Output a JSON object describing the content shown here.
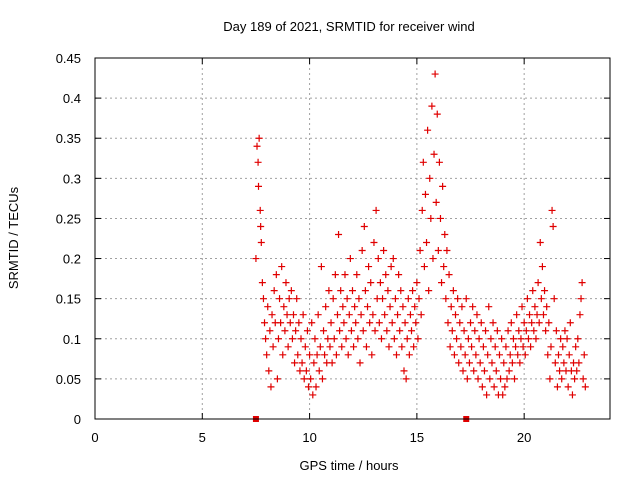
{
  "chart_data": {
    "type": "scatter",
    "title": "Day 189 of 2021, SRMTID for receiver wind",
    "xlabel": "GPS time / hours",
    "ylabel": "SRMTID / TECUs",
    "xlim": [
      0,
      24
    ],
    "ylim": [
      0,
      0.45
    ],
    "xticks": [
      0,
      5,
      10,
      15,
      20
    ],
    "yticks": [
      0,
      0.05,
      0.1,
      0.15,
      0.2,
      0.25,
      0.3,
      0.35,
      0.4,
      0.45
    ],
    "xtick_labels": [
      "0",
      "5",
      "10",
      "15",
      "20"
    ],
    "ytick_labels": [
      "0",
      "0.05",
      "0.1",
      "0.15",
      "0.2",
      "0.25",
      "0.3",
      "0.35",
      "0.4",
      "0.45"
    ],
    "grid": true,
    "marker": "+",
    "color": "#e00000",
    "series": [
      {
        "name": "SRMTID",
        "points": [
          [
            7.5,
            0.2
          ],
          [
            7.55,
            0.34
          ],
          [
            7.6,
            0.32
          ],
          [
            7.62,
            0.29
          ],
          [
            7.65,
            0.35
          ],
          [
            7.7,
            0.26
          ],
          [
            7.72,
            0.24
          ],
          [
            7.75,
            0.22
          ],
          [
            7.8,
            0.17
          ],
          [
            7.85,
            0.15
          ],
          [
            7.9,
            0.12
          ],
          [
            7.95,
            0.1
          ],
          [
            8.0,
            0.08
          ],
          [
            8.05,
            0.14
          ],
          [
            8.1,
            0.06
          ],
          [
            8.15,
            0.11
          ],
          [
            8.2,
            0.04
          ],
          [
            8.25,
            0.13
          ],
          [
            8.3,
            0.09
          ],
          [
            8.35,
            0.16
          ],
          [
            8.4,
            0.12
          ],
          [
            8.45,
            0.18
          ],
          [
            8.5,
            0.05
          ],
          [
            8.55,
            0.1
          ],
          [
            8.6,
            0.15
          ],
          [
            8.65,
            0.12
          ],
          [
            8.7,
            0.19
          ],
          [
            8.75,
            0.08
          ],
          [
            8.8,
            0.14
          ],
          [
            8.85,
            0.11
          ],
          [
            8.9,
            0.17
          ],
          [
            8.95,
            0.13
          ],
          [
            9.0,
            0.09
          ],
          [
            9.05,
            0.15
          ],
          [
            9.1,
            0.12
          ],
          [
            9.15,
            0.16
          ],
          [
            9.2,
            0.1
          ],
          [
            9.25,
            0.13
          ],
          [
            9.3,
            0.07
          ],
          [
            9.35,
            0.11
          ],
          [
            9.4,
            0.15
          ],
          [
            9.45,
            0.08
          ],
          [
            9.5,
            0.12
          ],
          [
            9.55,
            0.06
          ],
          [
            9.6,
            0.1
          ],
          [
            9.65,
            0.07
          ],
          [
            9.7,
            0.13
          ],
          [
            9.75,
            0.05
          ],
          [
            9.8,
            0.09
          ],
          [
            9.85,
            0.06
          ],
          [
            9.9,
            0.11
          ],
          [
            9.95,
            0.04
          ],
          [
            10.0,
            0.08
          ],
          [
            10.05,
            0.05
          ],
          [
            10.1,
            0.12
          ],
          [
            10.15,
            0.03
          ],
          [
            10.2,
            0.07
          ],
          [
            10.25,
            0.1
          ],
          [
            10.3,
            0.04
          ],
          [
            10.35,
            0.08
          ],
          [
            10.4,
            0.13
          ],
          [
            10.45,
            0.06
          ],
          [
            10.5,
            0.09
          ],
          [
            10.55,
            0.19
          ],
          [
            10.6,
            0.05
          ],
          [
            10.65,
            0.11
          ],
          [
            10.7,
            0.08
          ],
          [
            10.75,
            0.14
          ],
          [
            10.8,
            0.07
          ],
          [
            10.85,
            0.1
          ],
          [
            10.9,
            0.16
          ],
          [
            10.95,
            0.09
          ],
          [
            11.0,
            0.12
          ],
          [
            11.05,
            0.07
          ],
          [
            11.1,
            0.15
          ],
          [
            11.15,
            0.1
          ],
          [
            11.2,
            0.18
          ],
          [
            11.25,
            0.08
          ],
          [
            11.3,
            0.13
          ],
          [
            11.35,
            0.23
          ],
          [
            11.4,
            0.11
          ],
          [
            11.45,
            0.16
          ],
          [
            11.5,
            0.09
          ],
          [
            11.55,
            0.14
          ],
          [
            11.6,
            0.12
          ],
          [
            11.65,
            0.18
          ],
          [
            11.7,
            0.1
          ],
          [
            11.75,
            0.15
          ],
          [
            11.8,
            0.08
          ],
          [
            11.85,
            0.13
          ],
          [
            11.9,
            0.2
          ],
          [
            11.95,
            0.11
          ],
          [
            12.0,
            0.16
          ],
          [
            12.05,
            0.09
          ],
          [
            12.1,
            0.14
          ],
          [
            12.15,
            0.12
          ],
          [
            12.2,
            0.18
          ],
          [
            12.25,
            0.1
          ],
          [
            12.3,
            0.15
          ],
          [
            12.35,
            0.07
          ],
          [
            12.4,
            0.13
          ],
          [
            12.45,
            0.21
          ],
          [
            12.5,
            0.11
          ],
          [
            12.55,
            0.24
          ],
          [
            12.6,
            0.16
          ],
          [
            12.65,
            0.09
          ],
          [
            12.7,
            0.14
          ],
          [
            12.75,
            0.19
          ],
          [
            12.8,
            0.12
          ],
          [
            12.85,
            0.17
          ],
          [
            12.9,
            0.08
          ],
          [
            12.95,
            0.13
          ],
          [
            13.0,
            0.22
          ],
          [
            13.05,
            0.11
          ],
          [
            13.1,
            0.26
          ],
          [
            13.15,
            0.15
          ],
          [
            13.2,
            0.2
          ],
          [
            13.25,
            0.12
          ],
          [
            13.3,
            0.17
          ],
          [
            13.35,
            0.1
          ],
          [
            13.4,
            0.15
          ],
          [
            13.45,
            0.21
          ],
          [
            13.5,
            0.13
          ],
          [
            13.55,
            0.18
          ],
          [
            13.6,
            0.11
          ],
          [
            13.65,
            0.16
          ],
          [
            13.7,
            0.09
          ],
          [
            13.75,
            0.14
          ],
          [
            13.8,
            0.19
          ],
          [
            13.85,
            0.12
          ],
          [
            13.9,
            0.2
          ],
          [
            13.95,
            0.1
          ],
          [
            14.0,
            0.15
          ],
          [
            14.05,
            0.08
          ],
          [
            14.1,
            0.13
          ],
          [
            14.15,
            0.18
          ],
          [
            14.2,
            0.11
          ],
          [
            14.25,
            0.16
          ],
          [
            14.3,
            0.09
          ],
          [
            14.35,
            0.14
          ],
          [
            14.4,
            0.06
          ],
          [
            14.45,
            0.12
          ],
          [
            14.5,
            0.05
          ],
          [
            14.55,
            0.1
          ],
          [
            14.6,
            0.15
          ],
          [
            14.65,
            0.08
          ],
          [
            14.7,
            0.13
          ],
          [
            14.75,
            0.11
          ],
          [
            14.8,
            0.16
          ],
          [
            14.85,
            0.09
          ],
          [
            14.9,
            0.14
          ],
          [
            14.95,
            0.12
          ],
          [
            15.0,
            0.17
          ],
          [
            15.05,
            0.1
          ],
          [
            15.1,
            0.15
          ],
          [
            15.15,
            0.21
          ],
          [
            15.2,
            0.13
          ],
          [
            15.25,
            0.26
          ],
          [
            15.3,
            0.32
          ],
          [
            15.35,
            0.19
          ],
          [
            15.4,
            0.28
          ],
          [
            15.45,
            0.22
          ],
          [
            15.5,
            0.36
          ],
          [
            15.55,
            0.16
          ],
          [
            15.6,
            0.3
          ],
          [
            15.65,
            0.25
          ],
          [
            15.7,
            0.39
          ],
          [
            15.75,
            0.2
          ],
          [
            15.8,
            0.33
          ],
          [
            15.85,
            0.43
          ],
          [
            15.9,
            0.27
          ],
          [
            15.95,
            0.38
          ],
          [
            16.0,
            0.21
          ],
          [
            16.05,
            0.32
          ],
          [
            16.1,
            0.25
          ],
          [
            16.15,
            0.17
          ],
          [
            16.2,
            0.29
          ],
          [
            16.25,
            0.19
          ],
          [
            16.3,
            0.23
          ],
          [
            16.35,
            0.15
          ],
          [
            16.4,
            0.21
          ],
          [
            16.45,
            0.12
          ],
          [
            16.5,
            0.18
          ],
          [
            16.55,
            0.09
          ],
          [
            16.6,
            0.14
          ],
          [
            16.65,
            0.11
          ],
          [
            16.7,
            0.16
          ],
          [
            16.75,
            0.08
          ],
          [
            16.8,
            0.13
          ],
          [
            16.85,
            0.1
          ],
          [
            16.9,
            0.15
          ],
          [
            16.95,
            0.07
          ],
          [
            17.0,
            0.12
          ],
          [
            17.05,
            0.09
          ],
          [
            17.1,
            0.14
          ],
          [
            17.15,
            0.06
          ],
          [
            17.2,
            0.11
          ],
          [
            17.25,
            0.08
          ],
          [
            17.3,
            0.15
          ],
          [
            17.35,
            0.05
          ],
          [
            17.4,
            0.1
          ],
          [
            17.45,
            0.07
          ],
          [
            17.5,
            0.12
          ],
          [
            17.55,
            0.09
          ],
          [
            17.6,
            0.14
          ],
          [
            17.65,
            0.06
          ],
          [
            17.7,
            0.11
          ],
          [
            17.75,
            0.08
          ],
          [
            17.8,
            0.13
          ],
          [
            17.85,
            0.05
          ],
          [
            17.9,
            0.1
          ],
          [
            17.95,
            0.07
          ],
          [
            18.0,
            0.12
          ],
          [
            18.05,
            0.04
          ],
          [
            18.1,
            0.09
          ],
          [
            18.15,
            0.06
          ],
          [
            18.2,
            0.11
          ],
          [
            18.25,
            0.03
          ],
          [
            18.3,
            0.08
          ],
          [
            18.35,
            0.14
          ],
          [
            18.4,
            0.05
          ],
          [
            18.45,
            0.1
          ],
          [
            18.5,
            0.07
          ],
          [
            18.55,
            0.12
          ],
          [
            18.6,
            0.04
          ],
          [
            18.65,
            0.09
          ],
          [
            18.7,
            0.06
          ],
          [
            18.75,
            0.11
          ],
          [
            18.8,
            0.03
          ],
          [
            18.85,
            0.08
          ],
          [
            18.9,
            0.05
          ],
          [
            18.95,
            0.1
          ],
          [
            19.0,
            0.03
          ],
          [
            19.05,
            0.07
          ],
          [
            19.1,
            0.04
          ],
          [
            19.15,
            0.09
          ],
          [
            19.2,
            0.05
          ],
          [
            19.25,
            0.11
          ],
          [
            19.3,
            0.06
          ],
          [
            19.35,
            0.08
          ],
          [
            19.4,
            0.12
          ],
          [
            19.45,
            0.07
          ],
          [
            19.5,
            0.1
          ],
          [
            19.55,
            0.05
          ],
          [
            19.6,
            0.09
          ],
          [
            19.65,
            0.13
          ],
          [
            19.7,
            0.08
          ],
          [
            19.75,
            0.11
          ],
          [
            19.8,
            0.07
          ],
          [
            19.85,
            0.1
          ],
          [
            19.9,
            0.14
          ],
          [
            19.95,
            0.09
          ],
          [
            20.0,
            0.12
          ],
          [
            20.05,
            0.08
          ],
          [
            20.1,
            0.11
          ],
          [
            20.15,
            0.15
          ],
          [
            20.2,
            0.1
          ],
          [
            20.25,
            0.13
          ],
          [
            20.3,
            0.09
          ],
          [
            20.35,
            0.12
          ],
          [
            20.4,
            0.16
          ],
          [
            20.45,
            0.11
          ],
          [
            20.5,
            0.14
          ],
          [
            20.55,
            0.1
          ],
          [
            20.6,
            0.13
          ],
          [
            20.65,
            0.17
          ],
          [
            20.7,
            0.12
          ],
          [
            20.75,
            0.22
          ],
          [
            20.8,
            0.15
          ],
          [
            20.85,
            0.19
          ],
          [
            20.9,
            0.13
          ],
          [
            20.95,
            0.16
          ],
          [
            21.0,
            0.11
          ],
          [
            21.05,
            0.14
          ],
          [
            21.1,
            0.08
          ],
          [
            21.15,
            0.12
          ],
          [
            21.2,
            0.05
          ],
          [
            21.25,
            0.09
          ],
          [
            21.3,
            0.26
          ],
          [
            21.35,
            0.24
          ],
          [
            21.4,
            0.15
          ],
          [
            21.45,
            0.07
          ],
          [
            21.5,
            0.11
          ],
          [
            21.55,
            0.04
          ],
          [
            21.6,
            0.08
          ],
          [
            21.65,
            0.06
          ],
          [
            21.7,
            0.1
          ],
          [
            21.75,
            0.05
          ],
          [
            21.8,
            0.09
          ],
          [
            21.85,
            0.07
          ],
          [
            21.9,
            0.11
          ],
          [
            21.95,
            0.06
          ],
          [
            22.0,
            0.1
          ],
          [
            22.05,
            0.04
          ],
          [
            22.1,
            0.08
          ],
          [
            22.15,
            0.12
          ],
          [
            22.2,
            0.06
          ],
          [
            22.25,
            0.03
          ],
          [
            22.3,
            0.07
          ],
          [
            22.35,
            0.05
          ],
          [
            22.4,
            0.09
          ],
          [
            22.45,
            0.06
          ],
          [
            22.5,
            0.1
          ],
          [
            22.55,
            0.07
          ],
          [
            22.6,
            0.13
          ],
          [
            22.65,
            0.15
          ],
          [
            22.7,
            0.17
          ],
          [
            22.75,
            0.05
          ],
          [
            22.8,
            0.08
          ],
          [
            22.85,
            0.04
          ]
        ]
      }
    ],
    "x_markers": [
      7.5,
      17.3
    ]
  }
}
